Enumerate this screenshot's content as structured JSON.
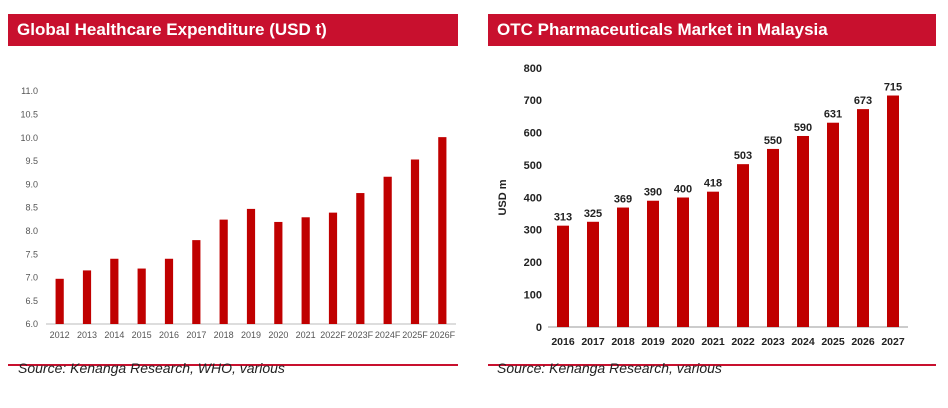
{
  "chart_data": [
    {
      "type": "bar",
      "title": "Global Healthcare Expenditure (USD t)",
      "xlabel": "",
      "ylabel": "",
      "categories": [
        "2012",
        "2013",
        "2014",
        "2015",
        "2016",
        "2017",
        "2018",
        "2019",
        "2020",
        "2021",
        "2022F",
        "2023F",
        "2024F",
        "2025F",
        "2026F"
      ],
      "values": [
        6.97,
        7.15,
        7.4,
        7.19,
        7.4,
        7.8,
        8.24,
        8.47,
        8.19,
        8.29,
        8.39,
        8.81,
        9.16,
        9.53,
        10.01
      ],
      "ylim": [
        6.0,
        11.0
      ],
      "yticks": [
        "6.0",
        "6.5",
        "7.0",
        "7.5",
        "8.0",
        "8.5",
        "9.0",
        "9.5",
        "10.0",
        "10.5",
        "11.0"
      ],
      "grid": false,
      "data_labels": false,
      "bar_color": "#c00000",
      "source": "Source: Kenanga Research, WHO, various"
    },
    {
      "type": "bar",
      "title": "OTC Pharmaceuticals Market in Malaysia",
      "xlabel": "",
      "ylabel": "USD m",
      "categories": [
        "2016",
        "2017",
        "2018",
        "2019",
        "2020",
        "2021",
        "2022",
        "2023",
        "2024",
        "2025",
        "2026",
        "2027"
      ],
      "values": [
        313,
        325,
        369,
        390,
        400,
        418,
        503,
        550,
        590,
        631,
        673,
        715
      ],
      "value_labels": [
        "313",
        "325",
        "369",
        "390",
        "400",
        "418",
        "503",
        "550",
        "590",
        "631",
        "673",
        "715"
      ],
      "ylim": [
        0,
        800
      ],
      "yticks": [
        "0",
        "100",
        "200",
        "300",
        "400",
        "500",
        "600",
        "700",
        "800"
      ],
      "grid": false,
      "data_labels": true,
      "bar_color": "#c00000",
      "source": "Source: Kenanga Research, various"
    }
  ],
  "colors": {
    "header_bg": "#c8102e",
    "header_text": "#ffffff",
    "bar": "#c00000"
  }
}
